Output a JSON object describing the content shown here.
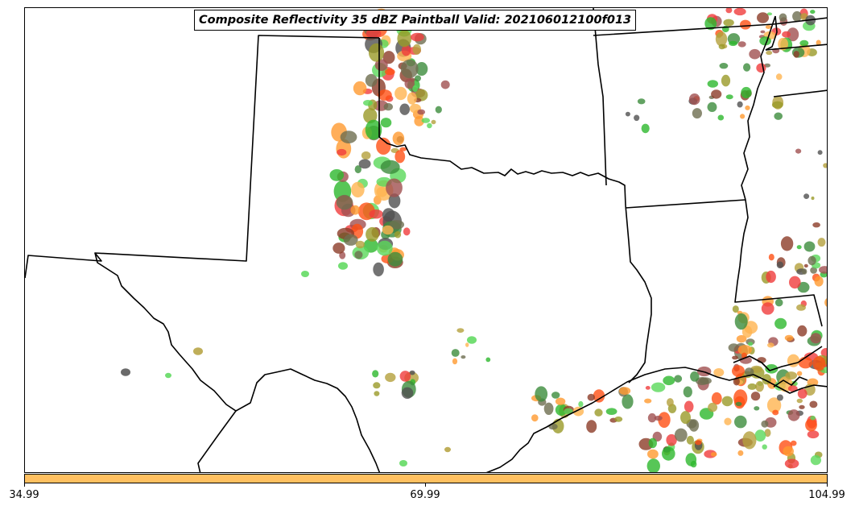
{
  "title": "Composite Reflectivity 35 dBZ Paintball Valid: 202106012100f013",
  "colorbar": {
    "color": "#ffc060",
    "ticks": [
      "34.99",
      "69.99",
      "104.99"
    ],
    "min": 34.99,
    "max": 104.99
  },
  "palette": [
    "#2db82d",
    "#5ad85a",
    "#3c8c3c",
    "#f03c3c",
    "#ff5014",
    "#ff9a30",
    "#ffb450",
    "#a05050",
    "#8c3c28",
    "#b4a03c",
    "#9a9a28",
    "#6e6e50",
    "#505050"
  ]
}
